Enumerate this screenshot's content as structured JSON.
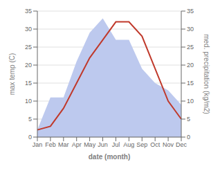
{
  "chart_data": {
    "type": "line",
    "x_label": "date (month)",
    "y_label": "max temp (C)",
    "y2_label": "med. precipitation (kg/m2)",
    "categories": [
      "Jan",
      "Feb",
      "Mar",
      "Apr",
      "May",
      "Jun",
      "Jul",
      "Aug",
      "Sep",
      "Oct",
      "Nov",
      "Dec"
    ],
    "series": [
      {
        "type": "area",
        "color": "#bdc9ee",
        "axis": "y2",
        "values": [
          2,
          11,
          11,
          21,
          29,
          33,
          27,
          27,
          19,
          15,
          13,
          9
        ]
      },
      {
        "type": "line",
        "color": "#c0392b",
        "values": [
          2,
          3,
          8,
          15,
          22,
          27,
          32,
          32,
          28,
          19,
          10,
          5
        ]
      }
    ],
    "ylim": [
      0,
      35
    ],
    "yticks": [
      0,
      5,
      10,
      15,
      20,
      25,
      30,
      35
    ],
    "y2lim": [
      0,
      35
    ],
    "y2ticks": [
      0,
      5,
      10,
      15,
      20,
      25,
      30,
      35
    ],
    "grid": true
  }
}
